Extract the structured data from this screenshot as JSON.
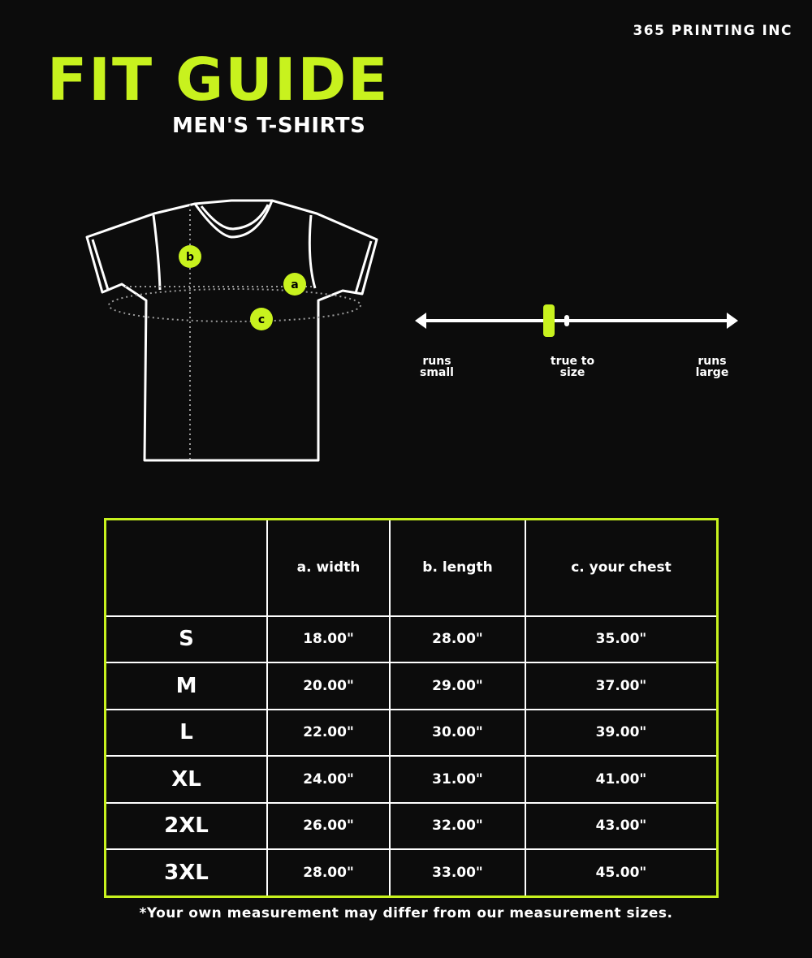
{
  "brand": "365 PRINTING INC",
  "title": "FIT GUIDE",
  "subtitle": "MEN'S T-SHIRTS",
  "diagram": {
    "labels": [
      "a",
      "b",
      "c"
    ]
  },
  "fit_scale": {
    "left": "runs small",
    "center": "true to size",
    "right": "runs large",
    "position": 0.41
  },
  "colors": {
    "accent": "#c8f21e",
    "background": "#0c0c0c",
    "text": "#ffffff"
  },
  "table": {
    "headers": [
      "",
      "a. width",
      "b. length",
      "c. your chest"
    ],
    "rows": [
      [
        "S",
        "18.00\"",
        "28.00\"",
        "35.00\""
      ],
      [
        "M",
        "20.00\"",
        "29.00\"",
        "37.00\""
      ],
      [
        "L",
        "22.00\"",
        "30.00\"",
        "39.00\""
      ],
      [
        "XL",
        "24.00\"",
        "31.00\"",
        "41.00\""
      ],
      [
        "2XL",
        "26.00\"",
        "32.00\"",
        "43.00\""
      ],
      [
        "3XL",
        "28.00\"",
        "33.00\"",
        "45.00\""
      ]
    ]
  },
  "footnote": "*Your own measurement may differ from our measurement sizes."
}
